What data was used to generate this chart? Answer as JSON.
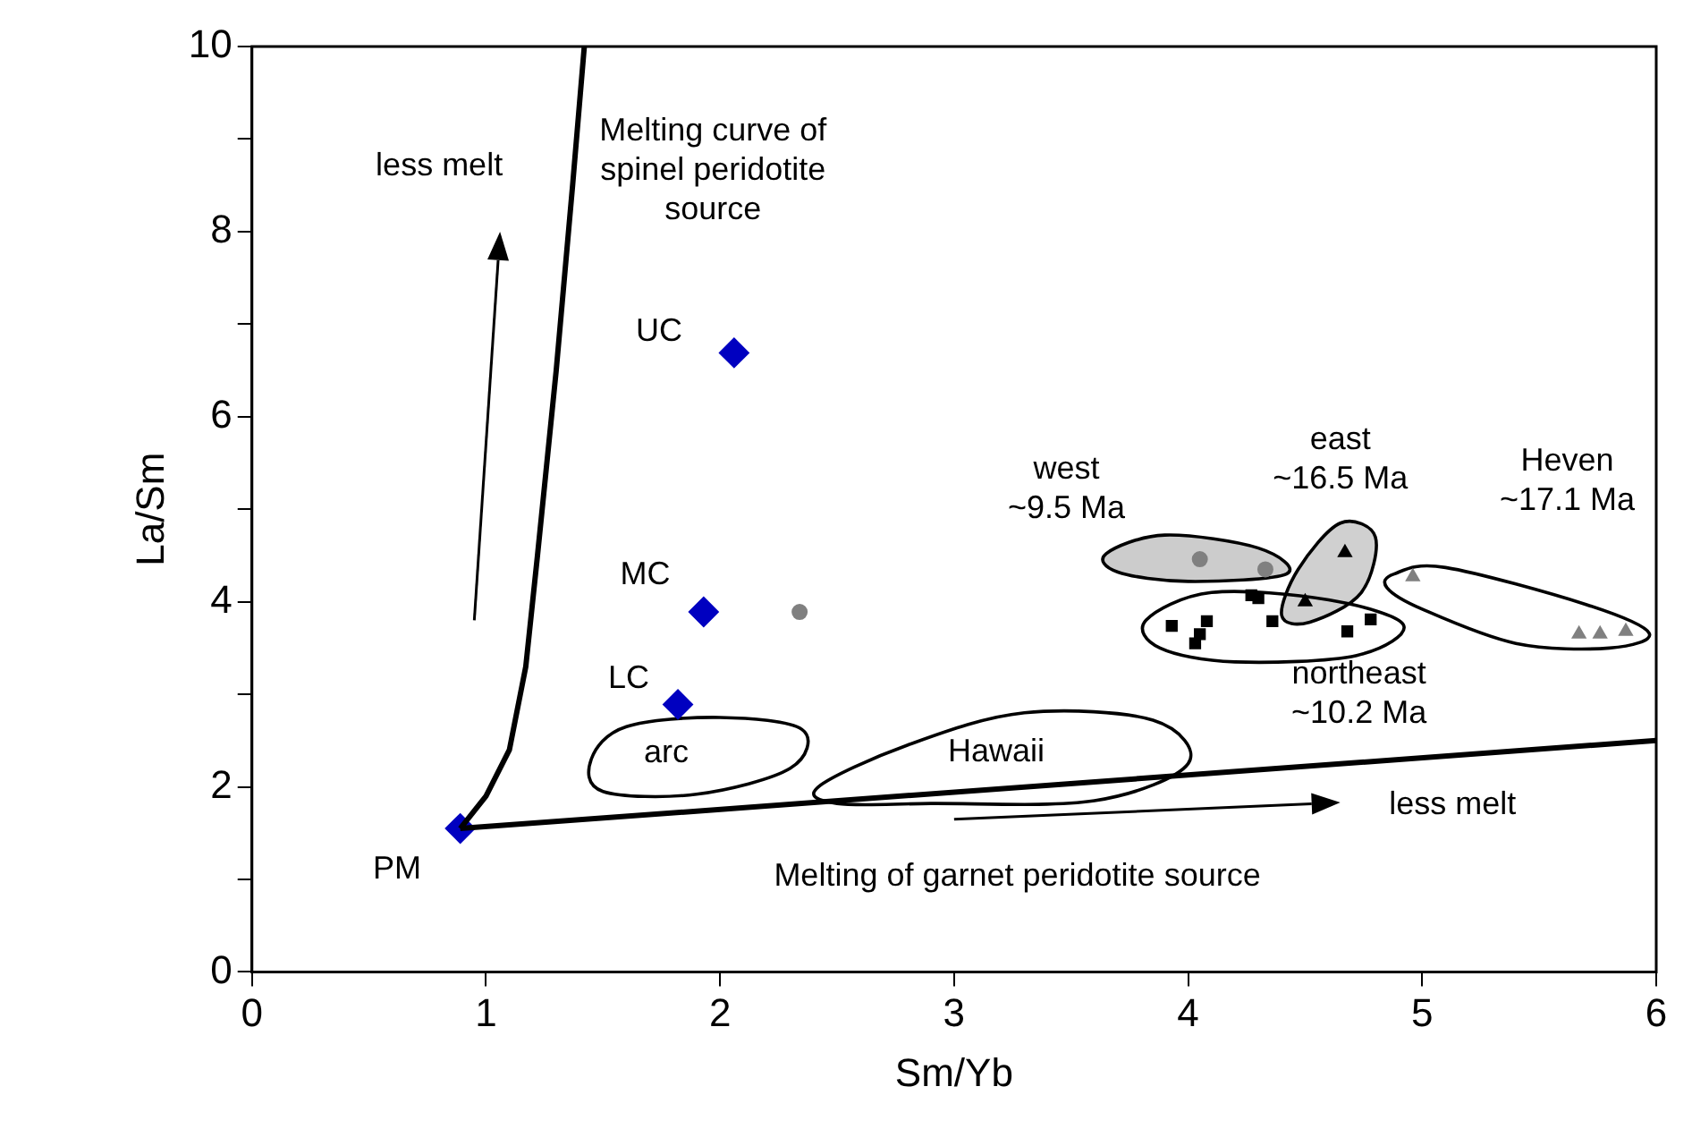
{
  "chart_data": {
    "type": "scatter",
    "xlabel": "Sm/Yb",
    "ylabel": "La/Sm",
    "xlim": [
      0,
      6
    ],
    "ylim": [
      0,
      10
    ],
    "xticks": [
      0,
      1,
      2,
      3,
      4,
      5,
      6
    ],
    "yticks": [
      0,
      {
        "value": 1,
        "label": null
      },
      2,
      {
        "value": 3,
        "label": null
      },
      4,
      {
        "value": 5,
        "label": null
      },
      6,
      {
        "value": 7,
        "label": null
      },
      8,
      {
        "value": 9,
        "label": null
      },
      10
    ],
    "grid": false,
    "legend": false,
    "series": [
      {
        "type": "line",
        "marker": "none",
        "color": "#000000",
        "x": [
          0.89,
          1.0,
          1.1,
          1.17,
          1.22,
          1.3,
          1.37,
          1.42
        ],
        "values": [
          1.55,
          1.9,
          2.4,
          3.3,
          4.5,
          6.5,
          8.5,
          10
        ]
      },
      {
        "type": "line",
        "marker": "none",
        "color": "#000000",
        "x": [
          0.89,
          6
        ],
        "values": [
          1.55,
          2.5
        ]
      },
      {
        "marker": "diamond",
        "color": "#0000c0",
        "x": [
          0.89,
          1.82,
          1.93,
          2.06
        ],
        "values": [
          1.55,
          2.89,
          3.89,
          6.69
        ]
      },
      {
        "marker": "circle",
        "color": "#808080",
        "x": [
          2.34,
          4.05,
          4.33
        ],
        "values": [
          3.89,
          4.46,
          4.35
        ]
      },
      {
        "marker": "triangle",
        "color": "#000000",
        "x": [
          4.67,
          4.5
        ],
        "values": [
          4.53,
          4.0
        ]
      },
      {
        "marker": "square",
        "color": "#000000",
        "x": [
          3.93,
          4.08,
          4.05,
          4.03,
          4.27,
          4.3,
          4.36,
          4.68,
          4.78
        ],
        "values": [
          3.74,
          3.79,
          3.65,
          3.55,
          4.07,
          4.04,
          3.79,
          3.68,
          3.81
        ]
      },
      {
        "marker": "triangle",
        "color": "#808080",
        "x": [
          4.96,
          5.67,
          5.76,
          5.87
        ],
        "values": [
          4.27,
          3.65,
          3.65,
          3.68
        ]
      }
    ],
    "annotations": [
      "less melt",
      "Melting curve of\nspinel peridotite\nsource",
      "UC",
      "MC",
      "LC",
      "PM",
      "arc",
      "Hawaii",
      "west\n~9.5 Ma",
      "east\n~16.5 Ma",
      "Heven\n~17.1 Ma",
      "northeast\n~10.2 Ma",
      "less melt",
      "Melting of garnet peridotite source"
    ]
  }
}
